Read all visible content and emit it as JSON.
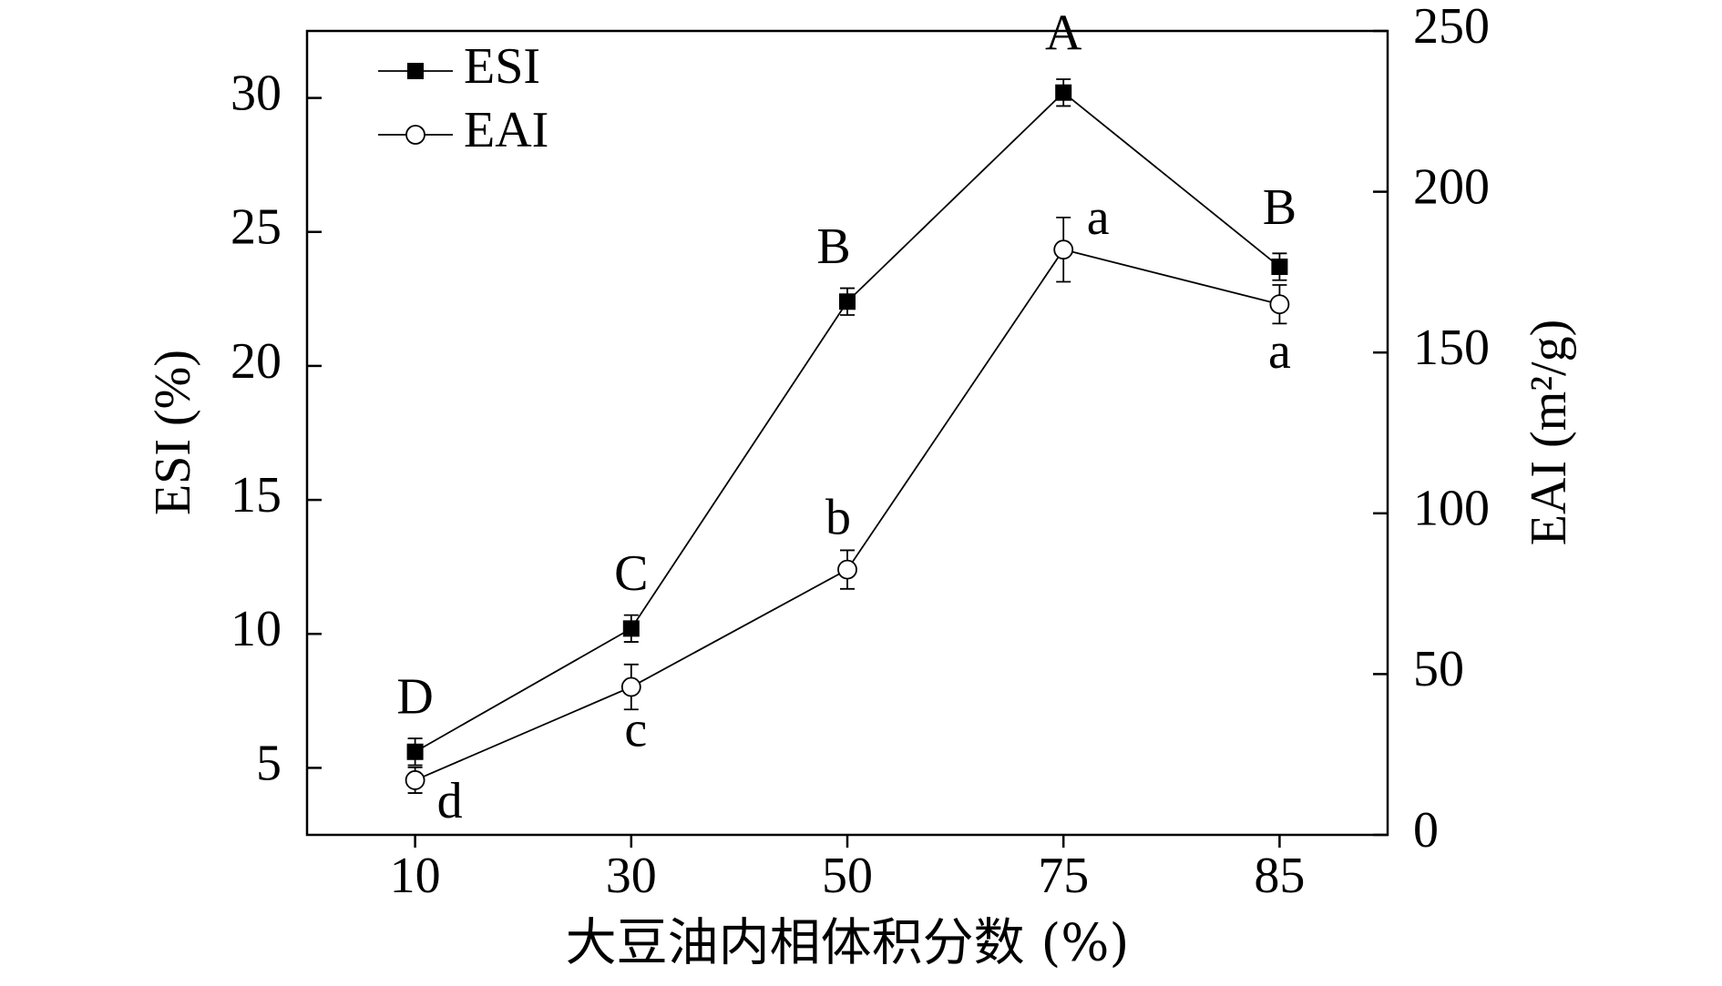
{
  "chart_data": {
    "type": "line",
    "x_label": "大豆油内相体积分数 (%)",
    "y_label": "ESI (%)",
    "y2_label": "EAI (m²/g)",
    "categories": [
      "10",
      "30",
      "50",
      "75",
      "85"
    ],
    "ylim": [
      2.5,
      32.5
    ],
    "yticks": [
      5,
      10,
      15,
      20,
      25,
      30
    ],
    "y2lim": [
      0,
      250
    ],
    "y2ticks": [
      0,
      50,
      100,
      150,
      200,
      250
    ],
    "legend": "upper left",
    "series": [
      {
        "name": "ESI",
        "color": "#000000",
        "marker": "filled-square",
        "values": [
          5.6,
          10.2,
          22.4,
          30.2,
          23.7
        ],
        "errors": [
          0.5,
          0.5,
          0.5,
          0.5,
          0.5
        ],
        "labels": [
          "D",
          "C",
          "B",
          "A",
          "B"
        ]
      },
      {
        "name": "EAI",
        "axis": "y2",
        "color": "#000000",
        "marker": "open-circle",
        "values": [
          17,
          46,
          82.5,
          182,
          165
        ],
        "errors": [
          4,
          7,
          6,
          10,
          6
        ],
        "labels": [
          "d",
          "c",
          "b",
          "a",
          "a"
        ]
      }
    ]
  }
}
